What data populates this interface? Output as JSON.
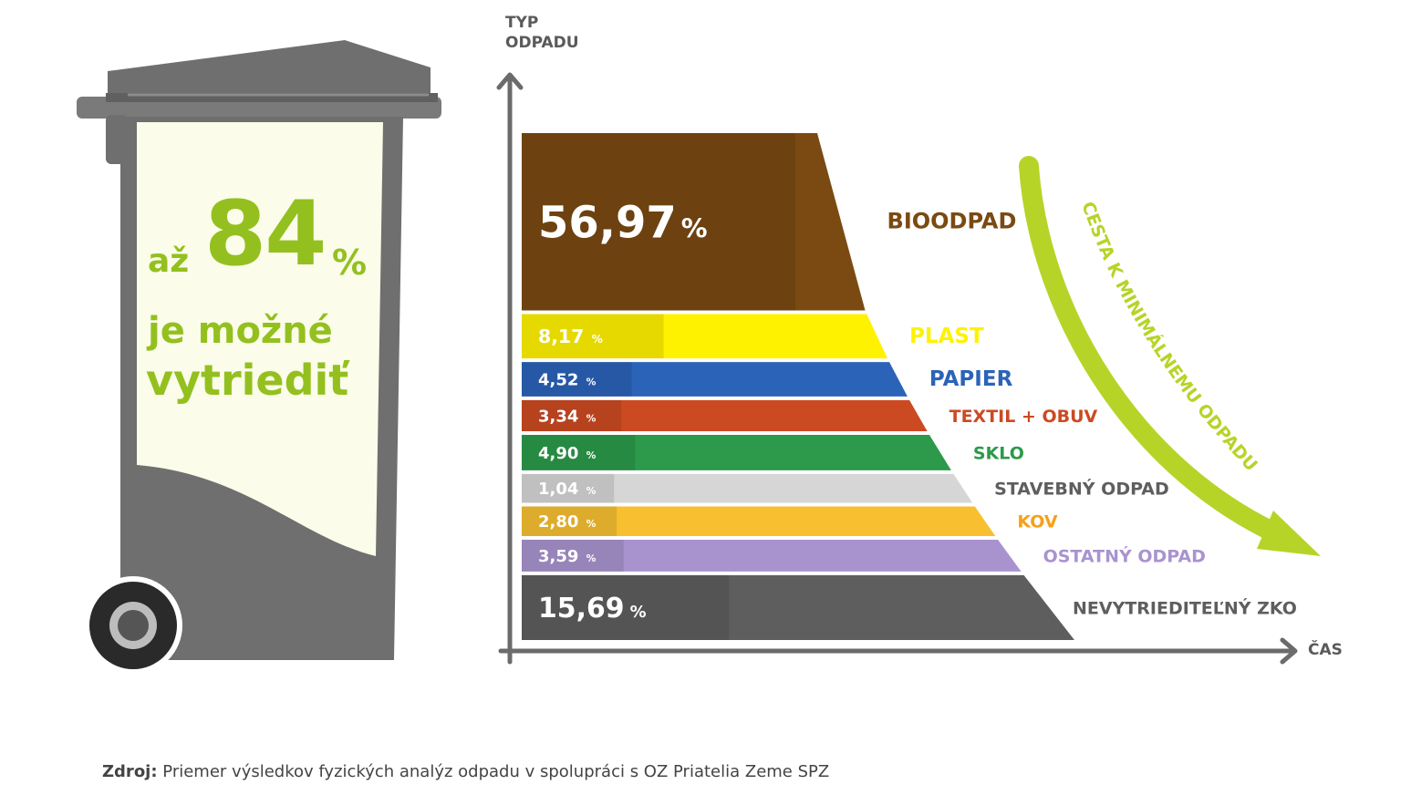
{
  "bin": {
    "prefix": "až",
    "number": "84",
    "percent": "%",
    "line1": "je možné",
    "line2": "vytriediť"
  },
  "axes": {
    "y_label_line1": "TYP",
    "y_label_line2": "ODPADU",
    "x_label": "ČAS"
  },
  "arrow_label": "CESTA K MINIMÁLNEMU ODPADU",
  "source": {
    "prefix": "Zdroj:",
    "text": "Priemer výsledkov fyzických analýz odpadu v spolupráci s OZ Priatelia Zeme SPZ"
  },
  "colors": {
    "green_accent": "#93c01f",
    "axis": "#6b6b6b",
    "bin": "#6f6f6f"
  },
  "chart_data": {
    "type": "bar",
    "title": "",
    "xlabel": "ČAS",
    "ylabel": "TYP ODPADU",
    "categories": [
      "BIOODPAD",
      "PLAST",
      "PAPIER",
      "TEXTIL + OBUV",
      "SKLO",
      "STAVEBNÝ ODPAD",
      "KOV",
      "OSTATNÝ ODPAD",
      "NEVYTRIEDITEĽNÝ ZKO"
    ],
    "values": [
      56.97,
      8.17,
      4.52,
      3.34,
      4.9,
      1.04,
      2.8,
      3.59,
      15.69
    ],
    "value_labels": [
      "56,97",
      "8,17",
      "4,52",
      "3,34",
      "4,90",
      "1,04",
      "2,80",
      "3,59",
      "15,69"
    ],
    "unit": "%",
    "colors": [
      "#7a4a12",
      "#fff200",
      "#2b63b8",
      "#cc4a22",
      "#2c9a4a",
      "#d6d6d6",
      "#f8c031",
      "#a993cf",
      "#5e5e5e"
    ],
    "label_colors": [
      "#7a4a12",
      "#fff200",
      "#2b63b8",
      "#cc4a22",
      "#2c9a4a",
      "#5e5e5e",
      "#f5a01a",
      "#a993cf",
      "#5e5e5e"
    ]
  }
}
